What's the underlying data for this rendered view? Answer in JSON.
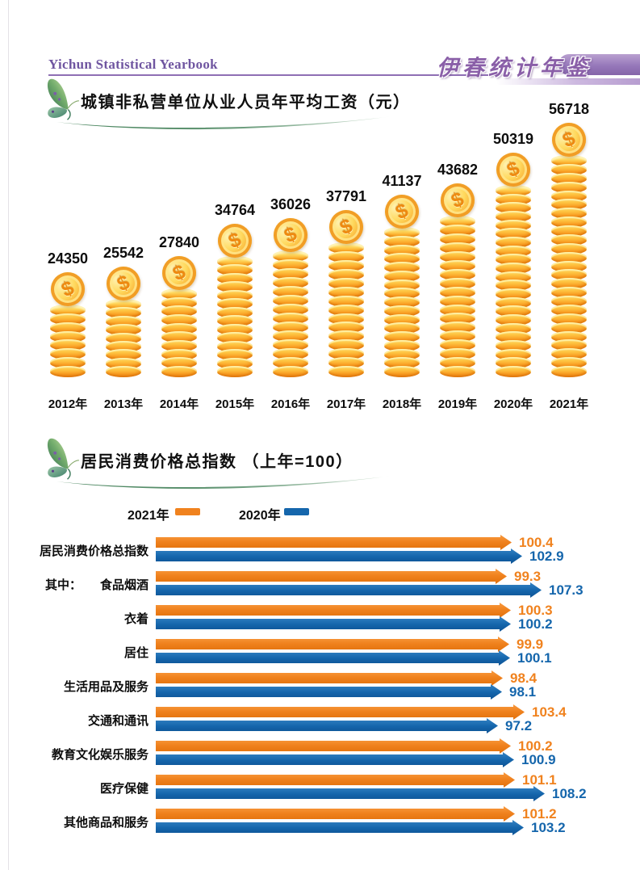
{
  "header": {
    "title_en": "Yichun Statistical Yearbook",
    "title_cn": "伊春统计年鉴"
  },
  "chart_data": [
    {
      "type": "bar",
      "style": "gold-coin-stacks",
      "title": "城镇非私营单位从业人员年平均工资（元）",
      "unit": "元",
      "categories": [
        "2012年",
        "2013年",
        "2014年",
        "2015年",
        "2016年",
        "2017年",
        "2018年",
        "2019年",
        "2020年",
        "2021年"
      ],
      "values": [
        24350,
        25542,
        27840,
        34764,
        36026,
        37791,
        41137,
        43682,
        50319,
        56718
      ],
      "data_labels": true,
      "grid": false
    },
    {
      "type": "bar",
      "orientation": "horizontal",
      "title": "居民消费价格总指数 （上年=100）",
      "note": "上年=100",
      "legend_position": "top",
      "grid": false,
      "categories": [
        "居民消费价格总指数",
        "食品烟酒",
        "衣着",
        "居住",
        "生活用品及服务",
        "交通和通讯",
        "教育文化娱乐服务",
        "医疗保健",
        "其他商品和服务"
      ],
      "category_prefixes": [
        "",
        "其中：",
        "",
        "",
        "",
        "",
        "",
        "",
        ""
      ],
      "series": [
        {
          "name": "2021年",
          "color": "#F0821E",
          "values": [
            100.4,
            99.3,
            100.3,
            99.9,
            98.4,
            103.4,
            100.2,
            101.1,
            101.2
          ]
        },
        {
          "name": "2020年",
          "color": "#1566AC",
          "values": [
            102.9,
            107.3,
            100.2,
            100.1,
            98.1,
            97.2,
            100.9,
            108.2,
            103.2
          ]
        }
      ],
      "data_labels": true
    }
  ]
}
